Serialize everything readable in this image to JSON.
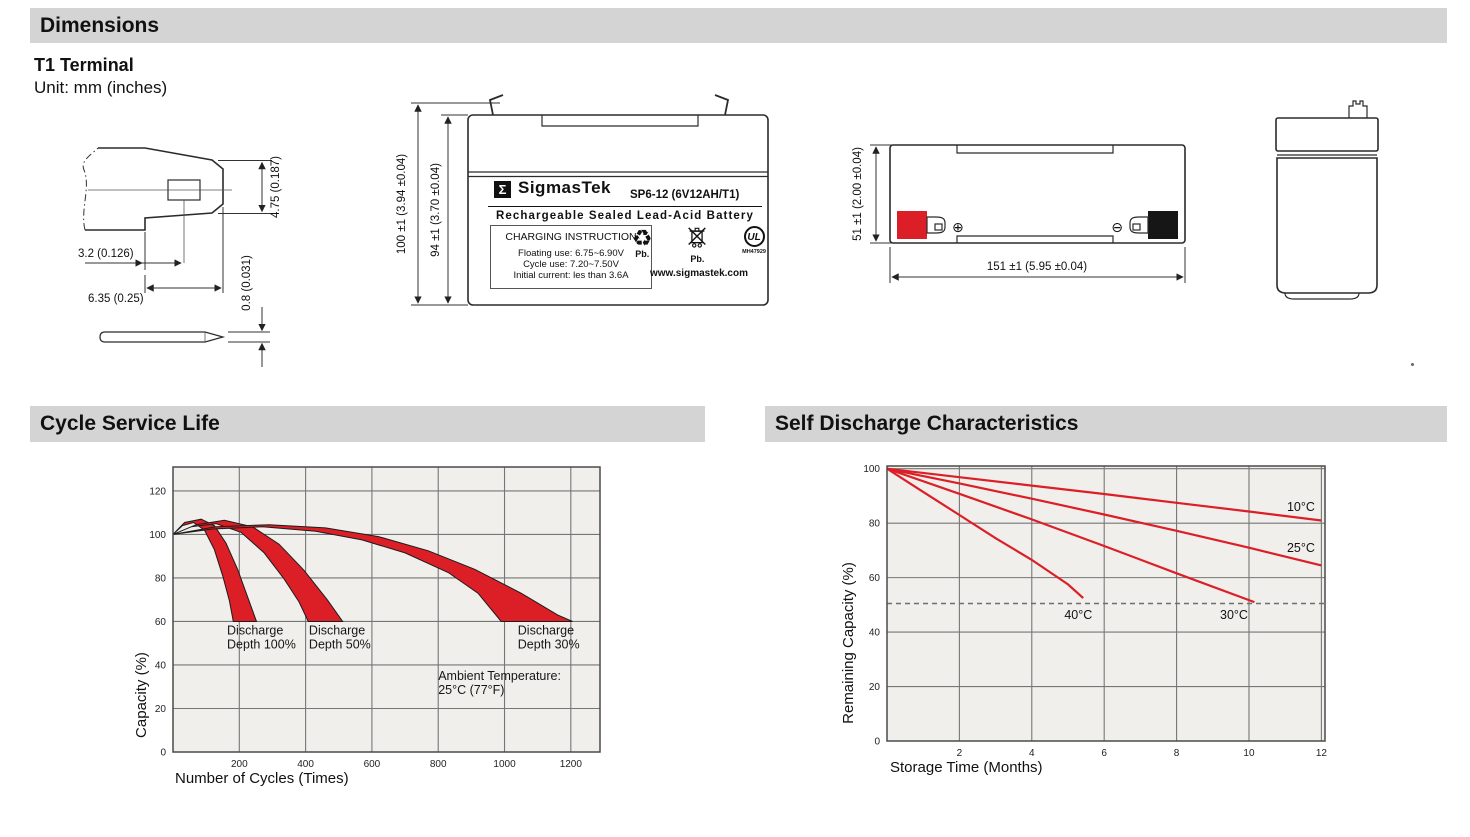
{
  "header": {
    "title": "Dimensions"
  },
  "terminal_section": {
    "subtitle": "T1 Terminal",
    "unit_note": "Unit: mm (inches)"
  },
  "terminal_drawing": {
    "dim_blade_height": "4.75 (0.187)",
    "dim_hole_offset": "3.2 (0.126)",
    "dim_blade_length": "6.35 (0.25)",
    "dim_thickness": "0.8 (0.031)"
  },
  "front_view": {
    "dim_overall_height": "100 ±1 (3.94 ±0.04)",
    "dim_case_height": "94 ±1 (3.70 ±0.04)",
    "label": {
      "logo_sigma": "Σ",
      "brand": "SigmasTek",
      "model": "SP6-12 (6V12AH/T1)",
      "type_line": "Rechargeable Sealed Lead-Acid Battery",
      "charging_title": "CHARGING INSTRUCTION",
      "charging_lines": [
        "Floating use: 6.75~6.90V",
        "Cycle use: 7.20~7.50V",
        "Initial current: les than 3.6A"
      ],
      "recycle_icon": "♻",
      "recycle_caption": "Pb.",
      "bin_caption": "Pb.",
      "ul_mark": "UL",
      "ul_file": "MH47929",
      "website": "www.sigmastek.com"
    }
  },
  "top_view": {
    "dim_width": "51 ±1 (2.00 ±0.04)",
    "dim_length": "151 ±1 (5.95 ±0.04)",
    "positive_symbol": "⊕",
    "negative_symbol": "⊖"
  },
  "cycle_section": {
    "title": "Cycle Service Life"
  },
  "self_discharge_section": {
    "title": "Self Discharge Characteristics"
  },
  "colors": {
    "accent_red": "#dc1f26",
    "bar_gray": "#d4d4d4",
    "plot_bg": "#f0efec",
    "grid": "#767676",
    "plot_border": "#4a4a4a"
  },
  "chart_data": [
    {
      "type": "area",
      "title": "Cycle Service Life",
      "xlabel": "Number of Cycles (Times)",
      "ylabel": "Capacity (%)",
      "xlim": [
        0,
        1288
      ],
      "ylim": [
        0,
        131
      ],
      "xticks": [
        200,
        400,
        600,
        800,
        1000,
        1200
      ],
      "yticks": [
        0,
        20,
        40,
        60,
        80,
        100,
        120
      ],
      "grid": true,
      "legend_position": "none",
      "bands": [
        {
          "name": "Discharge Depth 100%",
          "upper": [
            [
              0,
              100
            ],
            [
              35,
              105.5
            ],
            [
              85,
              107
            ],
            [
              125,
              104
            ],
            [
              160,
              96
            ],
            [
              195,
              84
            ],
            [
              228,
              70
            ],
            [
              252,
              60
            ]
          ],
          "lower": [
            [
              0,
              100
            ],
            [
              28,
              104
            ],
            [
              62,
              105.5
            ],
            [
              95,
              102
            ],
            [
              125,
              93
            ],
            [
              150,
              81
            ],
            [
              170,
              69.5
            ],
            [
              182,
              60
            ]
          ]
        },
        {
          "name": "Discharge Depth 50%",
          "upper": [
            [
              0,
              100
            ],
            [
              70,
              104.5
            ],
            [
              155,
              106.5
            ],
            [
              240,
              103.5
            ],
            [
              320,
              95.5
            ],
            [
              395,
              83.5
            ],
            [
              465,
              70
            ],
            [
              512,
              60
            ]
          ],
          "lower": [
            [
              0,
              100
            ],
            [
              55,
              103.5
            ],
            [
              130,
              105
            ],
            [
              205,
              101
            ],
            [
              275,
              91.5
            ],
            [
              335,
              79.5
            ],
            [
              380,
              69
            ],
            [
              408,
              60
            ]
          ]
        },
        {
          "name": "Discharge Depth 30%",
          "upper": [
            [
              0,
              100
            ],
            [
              130,
              103.5
            ],
            [
              290,
              104.5
            ],
            [
              460,
              103
            ],
            [
              620,
              99
            ],
            [
              770,
              92.5
            ],
            [
              910,
              84
            ],
            [
              1050,
              73
            ],
            [
              1160,
              63
            ],
            [
              1205,
              60
            ]
          ],
          "lower": [
            [
              0,
              100
            ],
            [
              120,
              102.5
            ],
            [
              270,
              103.5
            ],
            [
              430,
              101.5
            ],
            [
              570,
              97.5
            ],
            [
              700,
              91.5
            ],
            [
              830,
              82.5
            ],
            [
              920,
              73
            ],
            [
              990,
              60
            ]
          ]
        }
      ],
      "annotations": [
        {
          "text": [
            "Discharge",
            "Depth 100%"
          ],
          "x": 163,
          "y": 54
        },
        {
          "text": [
            "Discharge",
            "Depth 50%"
          ],
          "x": 410,
          "y": 54
        },
        {
          "text": [
            "Discharge",
            "Depth 30%"
          ],
          "x": 1040,
          "y": 54
        },
        {
          "text": [
            "Ambient Temperature:",
            "25°C (77°F)"
          ],
          "x": 800,
          "y": 33
        }
      ]
    },
    {
      "type": "line",
      "title": "Self Discharge Characteristics",
      "xlabel": "Storage Time (Months)",
      "ylabel": "Remaining Capacity (%)",
      "xlim": [
        0,
        12.1
      ],
      "ylim": [
        0,
        101
      ],
      "xticks": [
        2,
        4,
        6,
        8,
        10,
        12
      ],
      "yticks": [
        0,
        20,
        40,
        60,
        80,
        100
      ],
      "grid": true,
      "legend_position": "inline-labels",
      "dashed_line_y": 50.5,
      "series": [
        {
          "name": "10°C",
          "points": [
            [
              0,
              100
            ],
            [
              2,
              96.9
            ],
            [
              4,
              93.8
            ],
            [
              6,
              90.7
            ],
            [
              8,
              87.5
            ],
            [
              10,
              84.3
            ],
            [
              12,
              81
            ]
          ],
          "label_x": 11.05,
          "label_y": 84.5
        },
        {
          "name": "25°C",
          "points": [
            [
              0,
              100
            ],
            [
              2,
              94.6
            ],
            [
              4,
              89
            ],
            [
              6,
              83.2
            ],
            [
              8,
              77.2
            ],
            [
              10,
              71
            ],
            [
              12,
              64.5
            ]
          ],
          "label_x": 11.05,
          "label_y": 69.5
        },
        {
          "name": "30°C",
          "points": [
            [
              0,
              100
            ],
            [
              2,
              90.8
            ],
            [
              4,
              81.4
            ],
            [
              6,
              71.6
            ],
            [
              8,
              61.6
            ],
            [
              10.15,
              51
            ]
          ],
          "label_x": 9.2,
          "label_y": 44.8
        },
        {
          "name": "40°C",
          "points": [
            [
              0,
              100
            ],
            [
              1,
              91.5
            ],
            [
              2,
              83
            ],
            [
              3,
              74.5
            ],
            [
              4,
              66.5
            ],
            [
              5,
              57.5
            ],
            [
              5.42,
              52.5
            ]
          ],
          "label_x": 4.9,
          "label_y": 44.8
        }
      ]
    }
  ]
}
